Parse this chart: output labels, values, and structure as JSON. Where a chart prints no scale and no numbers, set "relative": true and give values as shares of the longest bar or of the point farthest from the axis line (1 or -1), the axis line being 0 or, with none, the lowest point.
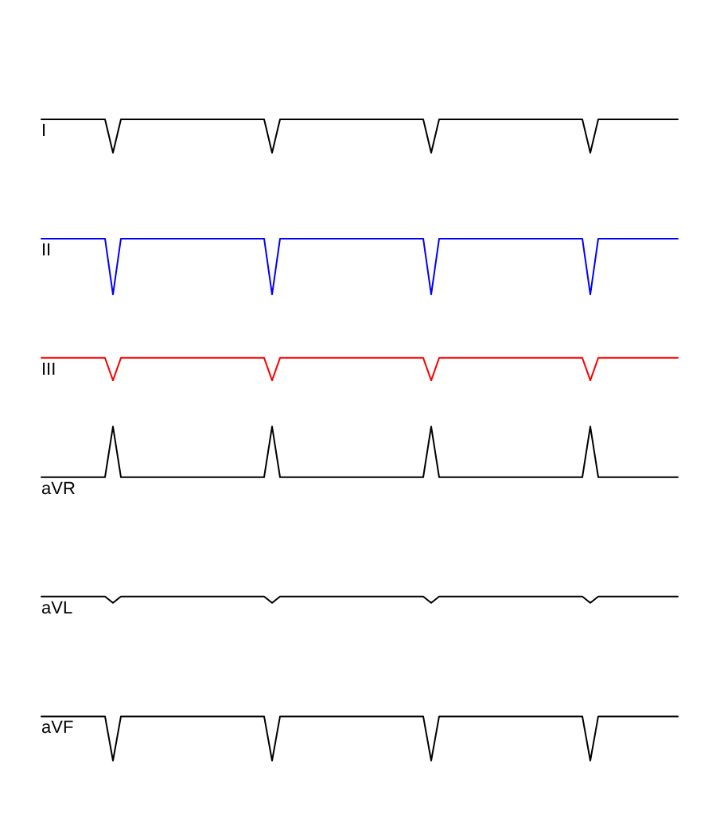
{
  "chart_data": {
    "type": "line",
    "relative": true,
    "categories": [
      null,
      null,
      null,
      null,
      null,
      null,
      null,
      null,
      null,
      null,
      null,
      null,
      null,
      null,
      null,
      null,
      null,
      null,
      null,
      null,
      null,
      null,
      null,
      null,
      null,
      null,
      null,
      null,
      null,
      null,
      null,
      null,
      null,
      null,
      null,
      null,
      null,
      null,
      null,
      null,
      null,
      null,
      null,
      null,
      null,
      null,
      null,
      null,
      null,
      null,
      null,
      null,
      null,
      null,
      null,
      null,
      null,
      null,
      null,
      null,
      null,
      null,
      null,
      null,
      null,
      null,
      null,
      null,
      null,
      null,
      null,
      null,
      null,
      null,
      null,
      null,
      null,
      null,
      null,
      null,
      null
    ],
    "series": [
      {
        "name": "I",
        "color": "#000000",
        "values": [
          1,
          1,
          1,
          1,
          1,
          1,
          1,
          1,
          1,
          0.948,
          1,
          1,
          1,
          1,
          1,
          1,
          1,
          1,
          1,
          1,
          1,
          1,
          1,
          1,
          1,
          1,
          1,
          1,
          1,
          0.948,
          1,
          1,
          1,
          1,
          1,
          1,
          1,
          1,
          1,
          1,
          1,
          1,
          1,
          1,
          1,
          1,
          1,
          1,
          1,
          0.948,
          1,
          1,
          1,
          1,
          1,
          1,
          1,
          1,
          1,
          1,
          1,
          1,
          1,
          1,
          1,
          1,
          1,
          1,
          1,
          0.948,
          1,
          1,
          1,
          1,
          1,
          1,
          1,
          1,
          1,
          1,
          1
        ]
      },
      {
        "name": "II",
        "color": "#0000ff",
        "values": [
          0.814,
          0.814,
          0.814,
          0.814,
          0.814,
          0.814,
          0.814,
          0.814,
          0.814,
          0.727,
          0.814,
          0.814,
          0.814,
          0.814,
          0.814,
          0.814,
          0.814,
          0.814,
          0.814,
          0.814,
          0.814,
          0.814,
          0.814,
          0.814,
          0.814,
          0.814,
          0.814,
          0.814,
          0.814,
          0.727,
          0.814,
          0.814,
          0.814,
          0.814,
          0.814,
          0.814,
          0.814,
          0.814,
          0.814,
          0.814,
          0.814,
          0.814,
          0.814,
          0.814,
          0.814,
          0.814,
          0.814,
          0.814,
          0.814,
          0.727,
          0.814,
          0.814,
          0.814,
          0.814,
          0.814,
          0.814,
          0.814,
          0.814,
          0.814,
          0.814,
          0.814,
          0.814,
          0.814,
          0.814,
          0.814,
          0.814,
          0.814,
          0.814,
          0.814,
          0.727,
          0.814,
          0.814,
          0.814,
          0.814,
          0.814,
          0.814,
          0.814,
          0.814,
          0.814,
          0.814,
          0.814
        ]
      },
      {
        "name": "III",
        "color": "#ff0000",
        "values": [
          0.628,
          0.628,
          0.628,
          0.628,
          0.628,
          0.628,
          0.628,
          0.628,
          0.628,
          0.593,
          0.628,
          0.628,
          0.628,
          0.628,
          0.628,
          0.628,
          0.628,
          0.628,
          0.628,
          0.628,
          0.628,
          0.628,
          0.628,
          0.628,
          0.628,
          0.628,
          0.628,
          0.628,
          0.628,
          0.593,
          0.628,
          0.628,
          0.628,
          0.628,
          0.628,
          0.628,
          0.628,
          0.628,
          0.628,
          0.628,
          0.628,
          0.628,
          0.628,
          0.628,
          0.628,
          0.628,
          0.628,
          0.628,
          0.628,
          0.593,
          0.628,
          0.628,
          0.628,
          0.628,
          0.628,
          0.628,
          0.628,
          0.628,
          0.628,
          0.628,
          0.628,
          0.628,
          0.628,
          0.628,
          0.628,
          0.628,
          0.628,
          0.628,
          0.628,
          0.593,
          0.628,
          0.628,
          0.628,
          0.628,
          0.628,
          0.628,
          0.628,
          0.628,
          0.628,
          0.628,
          0.628
        ]
      },
      {
        "name": "aVR",
        "color": "#000000",
        "values": [
          0.442,
          0.442,
          0.442,
          0.442,
          0.442,
          0.442,
          0.442,
          0.442,
          0.442,
          0.521,
          0.442,
          0.442,
          0.442,
          0.442,
          0.442,
          0.442,
          0.442,
          0.442,
          0.442,
          0.442,
          0.442,
          0.442,
          0.442,
          0.442,
          0.442,
          0.442,
          0.442,
          0.442,
          0.442,
          0.521,
          0.442,
          0.442,
          0.442,
          0.442,
          0.442,
          0.442,
          0.442,
          0.442,
          0.442,
          0.442,
          0.442,
          0.442,
          0.442,
          0.442,
          0.442,
          0.442,
          0.442,
          0.442,
          0.442,
          0.521,
          0.442,
          0.442,
          0.442,
          0.442,
          0.442,
          0.442,
          0.442,
          0.442,
          0.442,
          0.442,
          0.442,
          0.442,
          0.442,
          0.442,
          0.442,
          0.442,
          0.442,
          0.442,
          0.442,
          0.521,
          0.442,
          0.442,
          0.442,
          0.442,
          0.442,
          0.442,
          0.442,
          0.442,
          0.442,
          0.442,
          0.442
        ]
      },
      {
        "name": "aVL",
        "color": "#000000",
        "values": [
          0.256,
          0.256,
          0.256,
          0.256,
          0.256,
          0.256,
          0.256,
          0.256,
          0.256,
          0.246,
          0.256,
          0.256,
          0.256,
          0.256,
          0.256,
          0.256,
          0.256,
          0.256,
          0.256,
          0.256,
          0.256,
          0.256,
          0.256,
          0.256,
          0.256,
          0.256,
          0.256,
          0.256,
          0.256,
          0.246,
          0.256,
          0.256,
          0.256,
          0.256,
          0.256,
          0.256,
          0.256,
          0.256,
          0.256,
          0.256,
          0.256,
          0.256,
          0.256,
          0.256,
          0.256,
          0.256,
          0.256,
          0.256,
          0.256,
          0.246,
          0.256,
          0.256,
          0.256,
          0.256,
          0.256,
          0.256,
          0.256,
          0.256,
          0.256,
          0.256,
          0.256,
          0.256,
          0.256,
          0.256,
          0.256,
          0.256,
          0.256,
          0.256,
          0.256,
          0.246,
          0.256,
          0.256,
          0.256,
          0.256,
          0.256,
          0.256,
          0.256,
          0.256,
          0.256,
          0.256,
          0.256
        ]
      },
      {
        "name": "aVF",
        "color": "#000000",
        "values": [
          0.069,
          0.069,
          0.069,
          0.069,
          0.069,
          0.069,
          0.069,
          0.069,
          0.069,
          0,
          0.069,
          0.069,
          0.069,
          0.069,
          0.069,
          0.069,
          0.069,
          0.069,
          0.069,
          0.069,
          0.069,
          0.069,
          0.069,
          0.069,
          0.069,
          0.069,
          0.069,
          0.069,
          0.069,
          0,
          0.069,
          0.069,
          0.069,
          0.069,
          0.069,
          0.069,
          0.069,
          0.069,
          0.069,
          0.069,
          0.069,
          0.069,
          0.069,
          0.069,
          0.069,
          0.069,
          0.069,
          0.069,
          0.069,
          0,
          0.069,
          0.069,
          0.069,
          0.069,
          0.069,
          0.069,
          0.069,
          0.069,
          0.069,
          0.069,
          0.069,
          0.069,
          0.069,
          0.069,
          0.069,
          0.069,
          0.069,
          0.069,
          0.069,
          0,
          0.069,
          0.069,
          0.069,
          0.069,
          0.069,
          0.069,
          0.069,
          0.069,
          0.069,
          0.069,
          0.069
        ]
      }
    ]
  }
}
